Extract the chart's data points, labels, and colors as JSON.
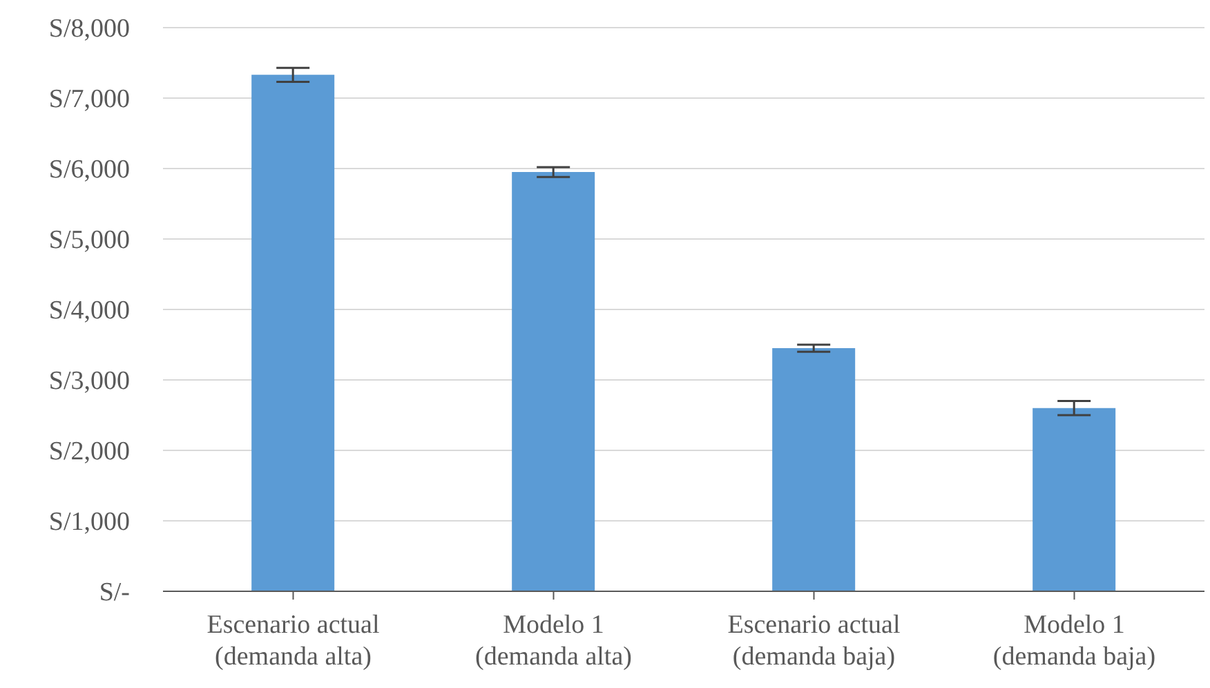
{
  "chart_data": {
    "type": "bar",
    "categories": [
      "Escenario actual (demanda alta)",
      "Modelo 1 (demanda alta)",
      "Escenario actual (demanda baja)",
      "Modelo 1 (demanda baja)"
    ],
    "values": [
      7330,
      5950,
      3450,
      2600
    ],
    "errors": [
      100,
      70,
      50,
      100
    ],
    "color": "#5b9bd5",
    "ylim": [
      0,
      8000
    ],
    "yticks": [
      {
        "value": 0,
        "label": "S/-"
      },
      {
        "value": 1000,
        "label": "S/1,000"
      },
      {
        "value": 2000,
        "label": "S/2,000"
      },
      {
        "value": 3000,
        "label": "S/3,000"
      },
      {
        "value": 4000,
        "label": "S/4,000"
      },
      {
        "value": 5000,
        "label": "S/5,000"
      },
      {
        "value": 6000,
        "label": "S/6,000"
      },
      {
        "value": 7000,
        "label": "S/7,000"
      },
      {
        "value": 8000,
        "label": "S/8,000"
      }
    ],
    "grid": "y"
  }
}
